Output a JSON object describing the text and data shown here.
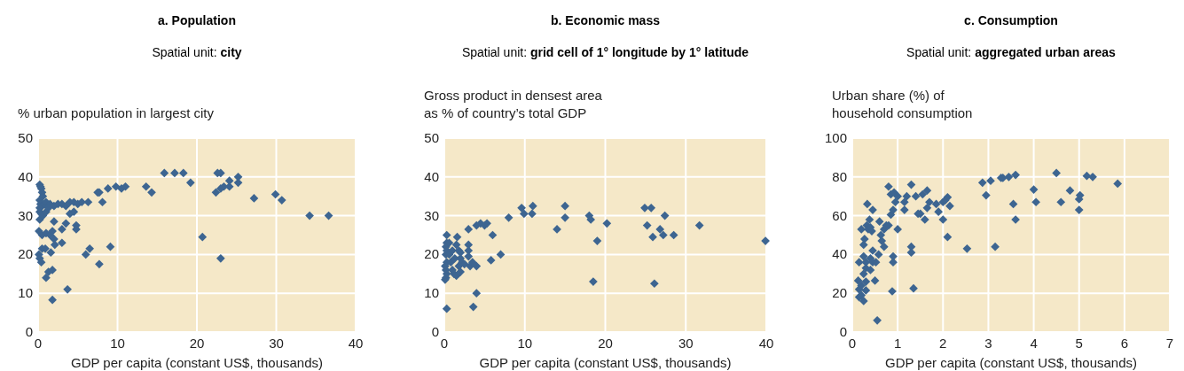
{
  "chart_data": [
    {
      "type": "scatter",
      "title": "a. Population",
      "subtitle": "Spatial unit: city",
      "ylabel": "% urban population in largest city",
      "xlabel": "GDP per capita (constant US$, thousands)",
      "xlim": [
        0,
        40
      ],
      "xticks": [
        0,
        10,
        20,
        30,
        40
      ],
      "ylim": [
        0,
        50
      ],
      "yticks": [
        0,
        10,
        20,
        30,
        40,
        50
      ],
      "grid": true,
      "marker": "diamond",
      "series": [
        {
          "color": "#3d6591",
          "x": [
            0.2,
            0.3,
            0.4,
            0.5,
            0.6,
            0.2,
            0.3,
            0.5,
            0.8,
            1,
            1.5,
            2,
            2.5,
            3,
            3.5,
            4,
            4.5,
            5,
            0.2,
            0.2,
            0.4,
            0.2,
            0.6,
            1,
            1.3,
            0.1,
            0.5,
            1,
            1.5,
            1.8,
            2,
            2,
            2.1,
            3,
            3.5,
            3,
            4,
            4.5,
            4.8,
            4.8,
            0.1,
            0.2,
            0.4,
            0.5,
            0.9,
            1.6,
            1,
            1.3,
            1.8,
            1.8,
            3.7,
            5.5,
            6.3,
            7.5,
            7.7,
            8.1,
            8.8,
            9.8,
            10.5,
            11,
            6,
            6.5,
            7.7,
            9.1,
            13.6,
            14.3,
            15.9,
            17.2,
            18.3,
            19.2,
            20.7,
            22.4,
            22.6,
            23,
            23,
            23.4,
            24.1,
            24.1,
            25.2,
            25.2,
            27.2,
            29.9,
            30.7,
            34.2,
            36.6,
            23
          ],
          "values": [
            38,
            37.5,
            37,
            36,
            35,
            34,
            33,
            32.5,
            33,
            33.5,
            33,
            32.5,
            33,
            33,
            32.5,
            33.5,
            33.5,
            33,
            32,
            31,
            30.5,
            29,
            30,
            31,
            32,
            26,
            25,
            25.5,
            25,
            26,
            28.5,
            24,
            22.5,
            26.5,
            28,
            23,
            30.5,
            31,
            27.5,
            26.5,
            20,
            19,
            18,
            21.5,
            21.5,
            20.5,
            14,
            15.5,
            16,
            8.3,
            11,
            33.5,
            33.5,
            36,
            36,
            33.5,
            37,
            37.5,
            37,
            37.5,
            20,
            21.5,
            17.5,
            22,
            37.5,
            36,
            41,
            41,
            41,
            38.5,
            24.5,
            36,
            41,
            41,
            37,
            37.5,
            37.5,
            39,
            38.5,
            40,
            34.5,
            35.5,
            34,
            30,
            30,
            19
          ]
        }
      ]
    },
    {
      "type": "scatter",
      "title": "b. Economic mass",
      "subtitle": "Spatial unit: grid cell of 1° longitude by 1° latitude",
      "ylabel": "Gross product in densest area\nas % of country’s total GDP",
      "xlabel": "GDP per capita (constant US$, thousands)",
      "xlim": [
        0,
        40
      ],
      "xticks": [
        0,
        10,
        20,
        30,
        40
      ],
      "ylim": [
        0,
        50
      ],
      "yticks": [
        0,
        10,
        20,
        30,
        40,
        50
      ],
      "grid": true,
      "marker": "diamond",
      "series": [
        {
          "color": "#3d6591",
          "x": [
            0.3,
            0.1,
            0.2,
            0.3,
            0.2,
            0.1,
            0.3,
            0.2,
            0.3,
            0.2,
            0.3,
            0.3,
            0.6,
            0.6,
            0.8,
            1,
            1,
            1.2,
            1.3,
            1.5,
            1.5,
            1.6,
            1.8,
            1.8,
            2,
            2,
            2,
            2.2,
            2.5,
            3,
            3,
            3,
            3,
            3.2,
            3.5,
            4,
            3.6,
            4,
            4,
            4.5,
            5,
            5.3,
            5.8,
            6,
            7,
            8,
            9.6,
            9.9,
            10.9,
            11,
            14,
            15,
            15,
            18,
            18.2,
            18.5,
            19,
            20.2,
            24.9,
            25.2,
            25.7,
            25.9,
            26.1,
            26.8,
            27.2,
            27.4,
            28.5,
            31.7,
            39.9
          ],
          "values": [
            6,
            13.5,
            14,
            15,
            16,
            17,
            18,
            20,
            21,
            22,
            23,
            25,
            23,
            20,
            18,
            21,
            16,
            15,
            19,
            14.5,
            22.5,
            24.5,
            17,
            21,
            15.5,
            19,
            20.5,
            18,
            17.5,
            26.5,
            22.5,
            21,
            19.5,
            17,
            18,
            17,
            6.5,
            10,
            27.5,
            28,
            27.5,
            28,
            18.5,
            25,
            20,
            29.5,
            32,
            30.5,
            30.5,
            32.5,
            26.5,
            32.5,
            29.5,
            30,
            29,
            13,
            23.5,
            28,
            32,
            27.5,
            32,
            24.5,
            12.5,
            26.5,
            25,
            30,
            25,
            27.5,
            23.5
          ]
        }
      ]
    },
    {
      "type": "scatter",
      "title": "c. Consumption",
      "subtitle": "Spatial unit: aggregated urban areas",
      "ylabel": "Urban share (%) of\nhousehold consumption",
      "xlabel": "GDP per capita (constant US$, thousands)",
      "xlim": [
        0,
        7
      ],
      "xticks": [
        0,
        1,
        2,
        3,
        4,
        5,
        6,
        7
      ],
      "ylim": [
        0,
        100
      ],
      "yticks": [
        0,
        20,
        40,
        60,
        80,
        100
      ],
      "grid": true,
      "marker": "diamond",
      "series": [
        {
          "color": "#3d6591",
          "x": [
            0.15,
            0.13,
            0.15,
            0.15,
            0.2,
            0.25,
            0.2,
            0.25,
            0.3,
            0.3,
            0.25,
            0.3,
            0.3,
            0.2,
            0.25,
            0.27,
            0.33,
            0.32,
            0.35,
            0.38,
            0.4,
            0.43,
            0.45,
            0.45,
            0.4,
            0.4,
            0.45,
            0.5,
            0.52,
            0.55,
            0.58,
            0.6,
            0.63,
            0.65,
            0.7,
            0.7,
            0.75,
            0.8,
            0.85,
            0.9,
            0.8,
            0.85,
            0.9,
            0.9,
            0.92,
            0.95,
            1,
            1,
            0.88,
            1.15,
            1.2,
            1.15,
            1.3,
            1.3,
            1.3,
            1.35,
            1.4,
            1.45,
            1.5,
            1.55,
            1.6,
            1.65,
            1.65,
            1.7,
            1.85,
            1.9,
            2,
            2,
            2.05,
            2.1,
            2.1,
            2.15,
            2.53,
            2.87,
            2.95,
            3.05,
            3.15,
            3.28,
            3.32,
            3.45,
            3.6,
            3.55,
            3.6,
            4,
            4.05,
            4.5,
            4.6,
            4.8,
            5,
            5,
            5.02,
            5.17,
            5.3,
            5.85
          ],
          "values": [
            36,
            26.5,
            22,
            18,
            19,
            16,
            24,
            30,
            33,
            36,
            39,
            21.5,
            26,
            53,
            45,
            48,
            66,
            55,
            53,
            58,
            54,
            52,
            63,
            42,
            38,
            32,
            36,
            26.5,
            36,
            6,
            40,
            57,
            50,
            47,
            44,
            53,
            55,
            55,
            60.5,
            63,
            75,
            71,
            39,
            36,
            72,
            67,
            70,
            53,
            21,
            67,
            70,
            63,
            76,
            41,
            44,
            22.5,
            70,
            61,
            61,
            71,
            58,
            73,
            64,
            67,
            66,
            62,
            67,
            58,
            68,
            69.5,
            49,
            65,
            43,
            77,
            70.5,
            78,
            44,
            79.5,
            79.5,
            80,
            81,
            66,
            58,
            73.5,
            67,
            82,
            67,
            73,
            63,
            68.5,
            70.5,
            80.5,
            80,
            76.5
          ]
        }
      ]
    }
  ]
}
